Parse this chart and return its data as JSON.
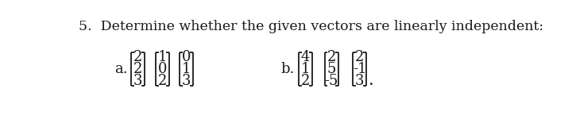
{
  "title": "5.  Determine whether the given vectors are linearly independent:",
  "title_fontsize": 12.5,
  "background_color": "#ffffff",
  "label_a": "a.",
  "label_b": "b.",
  "vectors_a": [
    [
      "2",
      "2",
      "3"
    ],
    [
      "1",
      "0",
      "2"
    ],
    [
      "0",
      "1",
      "3"
    ]
  ],
  "vectors_b": [
    [
      "4",
      "1",
      "2"
    ],
    [
      "2",
      "5",
      "-5"
    ],
    [
      "2",
      "-1",
      "3"
    ]
  ],
  "font_size": 13,
  "bracket_lw": 1.3,
  "text_color": "#1a1a1a"
}
